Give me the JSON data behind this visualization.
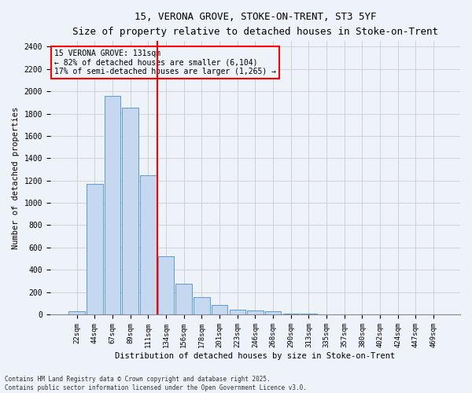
{
  "title_line1": "15, VERONA GROVE, STOKE-ON-TRENT, ST3 5YF",
  "title_line2": "Size of property relative to detached houses in Stoke-on-Trent",
  "xlabel": "Distribution of detached houses by size in Stoke-on-Trent",
  "ylabel": "Number of detached properties",
  "categories": [
    "22sqm",
    "44sqm",
    "67sqm",
    "89sqm",
    "111sqm",
    "134sqm",
    "156sqm",
    "178sqm",
    "201sqm",
    "223sqm",
    "246sqm",
    "268sqm",
    "290sqm",
    "313sqm",
    "335sqm",
    "357sqm",
    "380sqm",
    "402sqm",
    "424sqm",
    "447sqm",
    "469sqm"
  ],
  "values": [
    30,
    1170,
    1960,
    1855,
    1245,
    520,
    275,
    155,
    85,
    45,
    35,
    30,
    10,
    5,
    2,
    2,
    1,
    1,
    1,
    1,
    1
  ],
  "bar_color": "#c5d8f0",
  "bar_edge_color": "#5b9bd5",
  "vline_color": "red",
  "annotation_title": "15 VERONA GROVE: 131sqm",
  "annotation_line2": "← 82% of detached houses are smaller (6,104)",
  "annotation_line3": "17% of semi-detached houses are larger (1,265) →",
  "annotation_box_color": "red",
  "ylim": [
    0,
    2450
  ],
  "yticks": [
    0,
    200,
    400,
    600,
    800,
    1000,
    1200,
    1400,
    1600,
    1800,
    2000,
    2200,
    2400
  ],
  "grid_color": "#cccccc",
  "bg_color": "#eef2f9",
  "footer_line1": "Contains HM Land Registry data © Crown copyright and database right 2025.",
  "footer_line2": "Contains public sector information licensed under the Open Government Licence v3.0."
}
